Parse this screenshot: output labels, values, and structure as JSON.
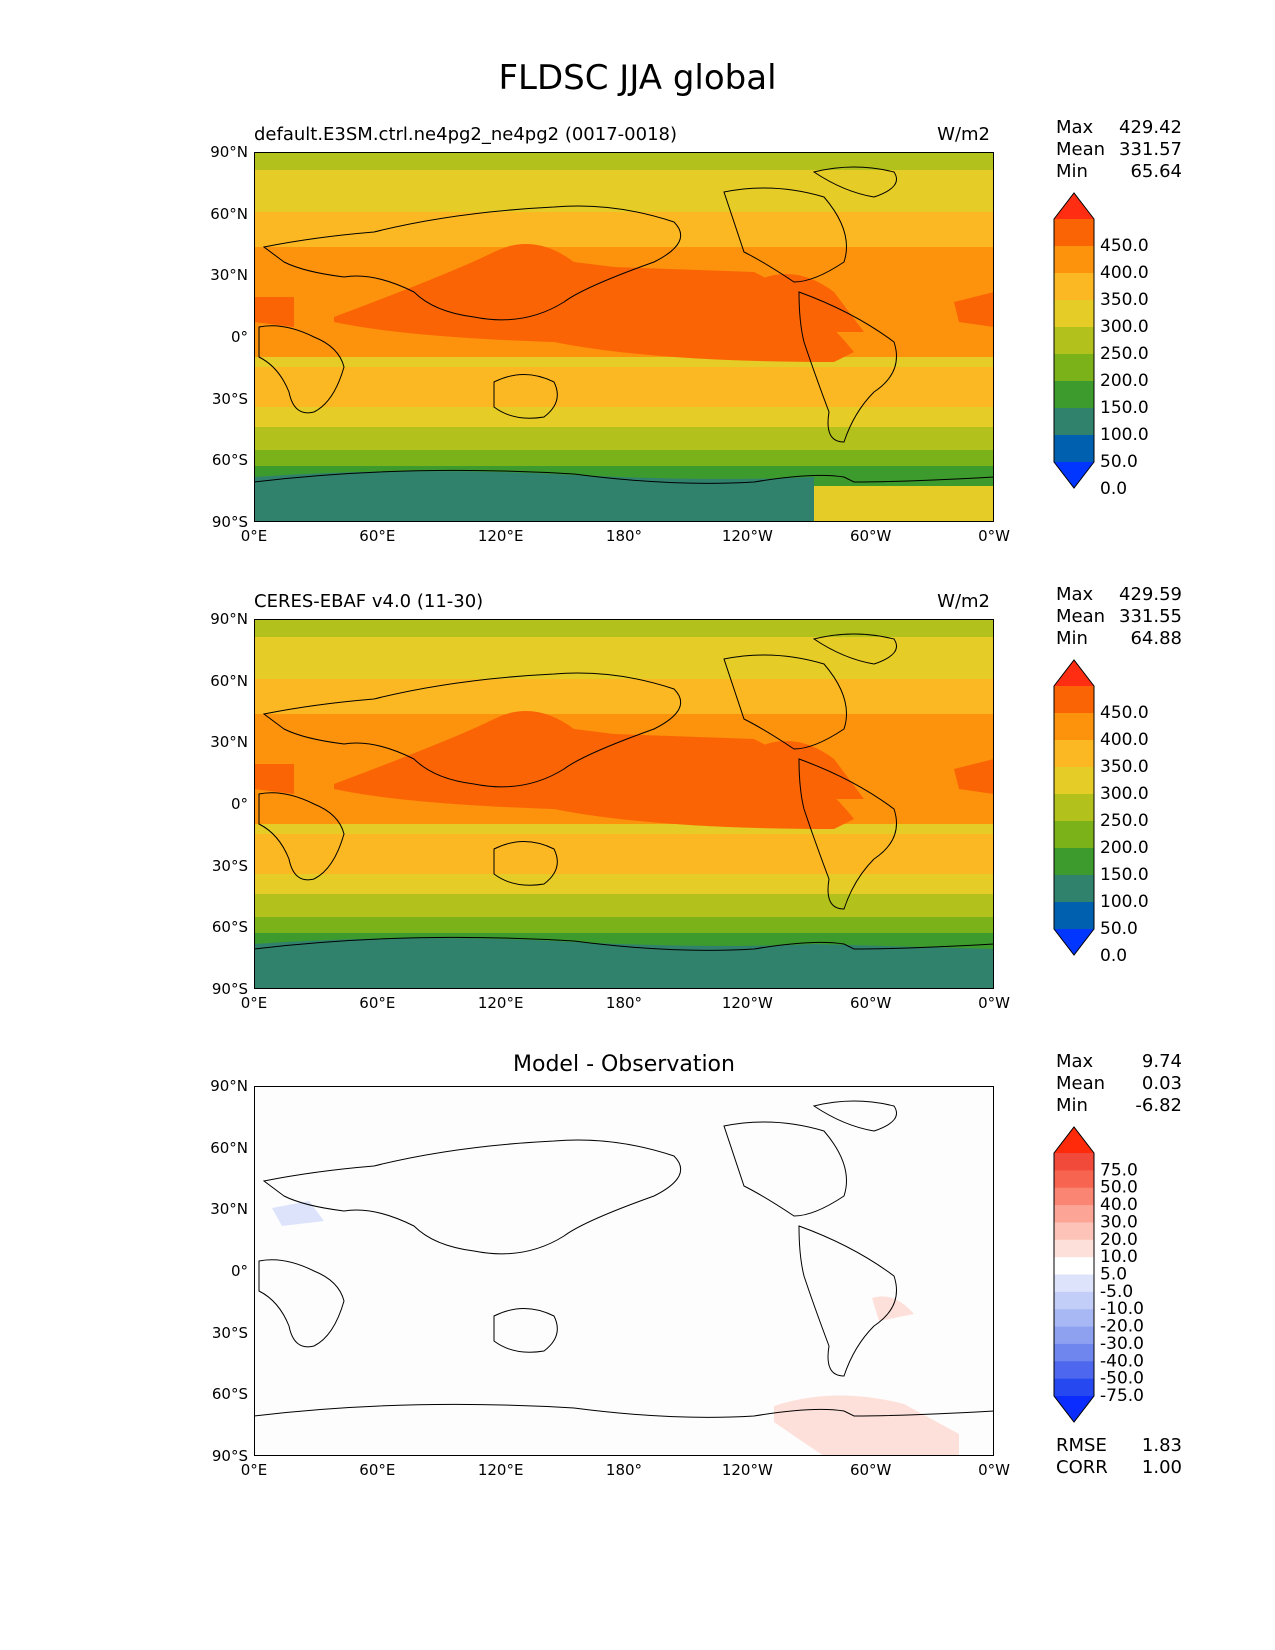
{
  "figure": {
    "title": "FLDSC JJA global"
  },
  "axes": {
    "lat_labels": [
      "90°N",
      "60°N",
      "30°N",
      "0°",
      "30°S",
      "60°S",
      "90°S"
    ],
    "lon_labels": [
      "0°E",
      "60°E",
      "120°E",
      "180°",
      "120°W",
      "60°W",
      "0°W"
    ]
  },
  "panels": [
    {
      "title": "default.E3SM.ctrl.ne4pg2_ne4pg2 (0017-0018)",
      "units": "W/m2",
      "stats": [
        {
          "label": "Max",
          "value": "429.42"
        },
        {
          "label": "Mean",
          "value": "331.57"
        },
        {
          "label": "Min",
          "value": "65.64"
        }
      ],
      "colorbar": {
        "labels": [
          "450.0",
          "400.0",
          "350.0",
          "300.0",
          "250.0",
          "200.0",
          "150.0",
          "100.0",
          "50.0",
          "0.0"
        ],
        "colors": [
          "#ff2e12",
          "#fb6405",
          "#fd920c",
          "#fbb822",
          "#e6cc26",
          "#b2c11b",
          "#7bb119",
          "#3d9a2d",
          "#31826d",
          "#0060b0",
          "#0036ff"
        ]
      }
    },
    {
      "title": "CERES-EBAF v4.0 (11-30)",
      "units": "W/m2",
      "stats": [
        {
          "label": "Max",
          "value": "429.59"
        },
        {
          "label": "Mean",
          "value": "331.55"
        },
        {
          "label": "Min",
          "value": "64.88"
        }
      ],
      "colorbar": {
        "labels": [
          "450.0",
          "400.0",
          "350.0",
          "300.0",
          "250.0",
          "200.0",
          "150.0",
          "100.0",
          "50.0",
          "0.0"
        ],
        "colors": [
          "#ff2e12",
          "#fb6405",
          "#fd920c",
          "#fbb822",
          "#e6cc26",
          "#b2c11b",
          "#7bb119",
          "#3d9a2d",
          "#31826d",
          "#0060b0",
          "#0036ff"
        ]
      }
    },
    {
      "title": "Model - Observation",
      "stats": [
        {
          "label": "Max",
          "value": "9.74"
        },
        {
          "label": "Mean",
          "value": "0.03"
        },
        {
          "label": "Min",
          "value": "-6.82"
        }
      ],
      "extra_stats": [
        {
          "label": "RMSE",
          "value": "1.83"
        },
        {
          "label": "CORR",
          "value": "1.00"
        }
      ],
      "colorbar": {
        "labels": [
          "75.0",
          "50.0",
          "40.0",
          "30.0",
          "20.0",
          "10.0",
          "5.0",
          "-5.0",
          "-10.0",
          "-20.0",
          "-30.0",
          "-40.0",
          "-50.0",
          "-75.0"
        ],
        "colors": [
          "#ff2a0a",
          "#f24a3a",
          "#f7644f",
          "#fb8573",
          "#fca597",
          "#fdc3b8",
          "#fee0da",
          "#ffffff",
          "#dde3fb",
          "#c2cdf8",
          "#a8b8f5",
          "#8ea1f1",
          "#6f86ee",
          "#4d68ee",
          "#2648f0",
          "#0a2cff"
        ]
      }
    }
  ]
}
